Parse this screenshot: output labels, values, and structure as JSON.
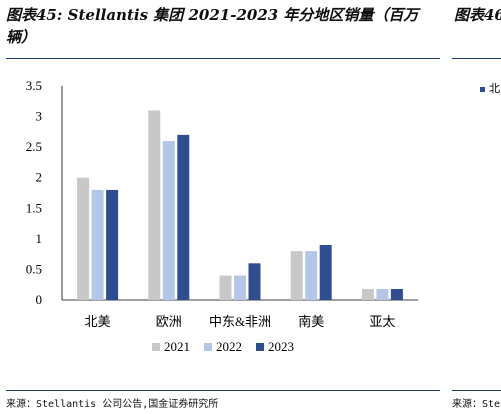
{
  "title": "图表45: Stellantis 集团 2021-2023 年分地区销量（百万辆）",
  "side_title": "图表46",
  "side_legend_label": "北",
  "source": "来源：Stellantis 公司公告,国金证券研究所",
  "side_source": "来源：Ste",
  "colors": {
    "2021": "#c8c8c8",
    "2022": "#b4c7e7",
    "2023": "#2f4d8f",
    "rule": "#1f3a6e"
  },
  "chart_data": {
    "type": "bar",
    "categories": [
      "北美",
      "欧洲",
      "中东&非洲",
      "南美",
      "亚太"
    ],
    "series": [
      {
        "name": "2021",
        "values": [
          2.0,
          3.1,
          0.4,
          0.8,
          0.18
        ]
      },
      {
        "name": "2022",
        "values": [
          1.8,
          2.6,
          0.4,
          0.8,
          0.18
        ]
      },
      {
        "name": "2023",
        "values": [
          1.8,
          2.7,
          0.6,
          0.9,
          0.18
        ]
      }
    ],
    "yticks": [
      "0",
      "0.5",
      "1",
      "1.5",
      "2",
      "2.5",
      "3",
      "3.5"
    ],
    "ylim": [
      0,
      3.5
    ],
    "grid": false,
    "legend": "bottom"
  }
}
